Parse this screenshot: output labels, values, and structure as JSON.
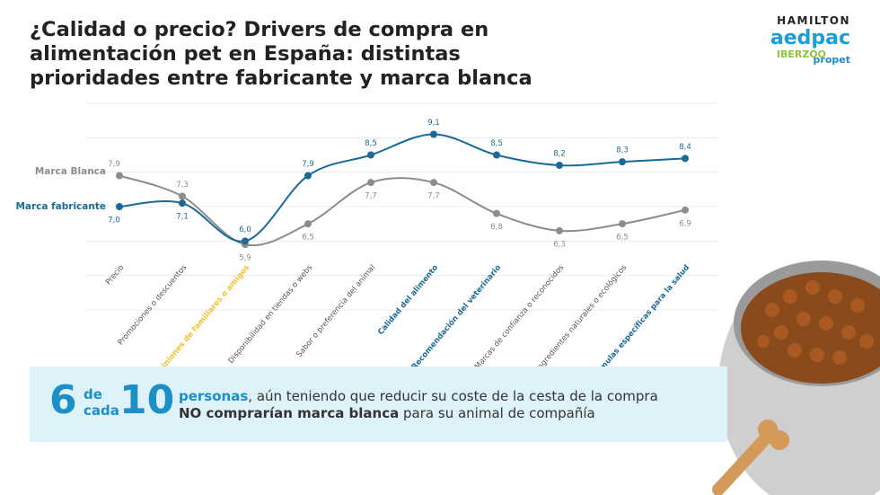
{
  "chart_data": {
    "type": "line",
    "title": "¿Calidad o precio? Drivers de compra en alimentación pet en España: distintas prioridades entre fabricante y marca blanca",
    "categories": [
      "Precio",
      "Promociones o descuentos",
      "Opiniones de familiares o amigos",
      "Disponibilidad en tiendas o webs",
      "Sabor o preferencia del animal",
      "Calidad del alimento",
      "Recomendación del veterinario",
      "Marcas de confianza o reconocidos",
      "Ingredientes naturales o ecológicos",
      "Fórmulas específicas para la salud"
    ],
    "category_colors": [
      "#555555",
      "#555555",
      "#f2c12e",
      "#555555",
      "#555555",
      "#1b6a96",
      "#1b6a96",
      "#555555",
      "#555555",
      "#1b6a96"
    ],
    "series": [
      {
        "name": "Marca Blanca",
        "color": "#8c8c8c",
        "values": [
          7.9,
          7.3,
          5.9,
          6.5,
          7.7,
          7.7,
          6.8,
          6.3,
          6.5,
          6.9
        ],
        "value_labels": [
          "7,9",
          "7,3",
          "5,9",
          "6,5",
          "7,7",
          "7,7",
          "6,8",
          "6,3",
          "6,5",
          "6,9"
        ]
      },
      {
        "name": "Marca fabricante",
        "color": "#1b6a96",
        "values": [
          7.0,
          7.1,
          6.0,
          7.9,
          8.5,
          9.1,
          8.5,
          8.2,
          8.3,
          8.4
        ],
        "value_labels": [
          "7,0",
          "7,1",
          "6,0",
          "7,9",
          "8,5",
          "9,1",
          "8,5",
          "8,2",
          "8,3",
          "8,4"
        ]
      }
    ],
    "ylim": [
      4,
      10
    ],
    "yticks": [
      4,
      5,
      6,
      7,
      8,
      9,
      10
    ],
    "grid": true
  },
  "logos": [
    "HAMILTON",
    "aedpac",
    "IBERZOO",
    "propet"
  ],
  "banner": {
    "number_a": "6",
    "connector_a": "de",
    "connector_b": "cada",
    "number_b": "10",
    "line1_bold": "personas",
    "line1": ", aún teniendo que reducir su coste de la cesta de la compra",
    "line2_bold": "NO comprarían marca blanca",
    "line2": " para su animal de compañía"
  }
}
